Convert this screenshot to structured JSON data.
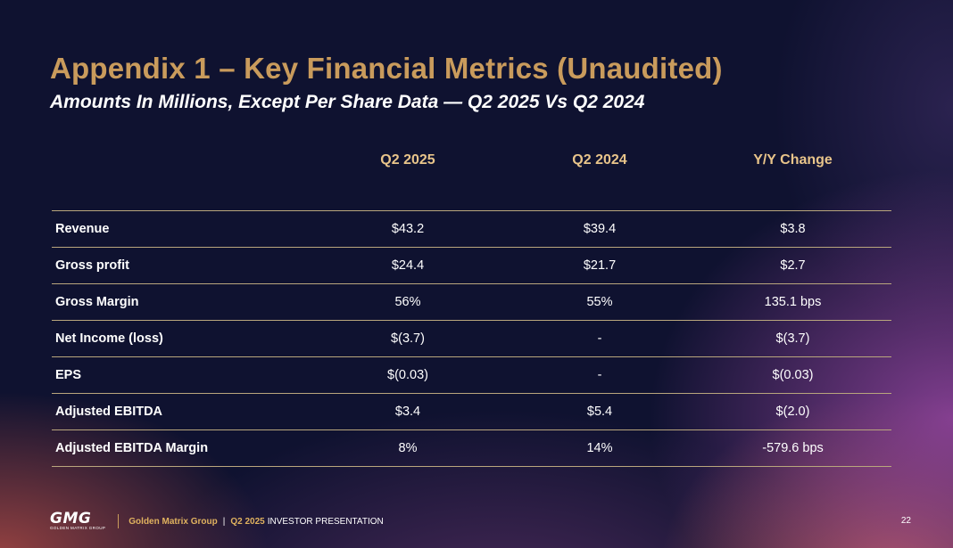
{
  "slide": {
    "title": "Appendix 1 – Key Financial Metrics (Unaudited)",
    "subtitle": "Amounts In Millions, Except Per Share Data — Q2 2025 Vs Q2 2024"
  },
  "table": {
    "headers": [
      "",
      "Q2 2025",
      "Q2 2024",
      "Y/Y Change"
    ],
    "rows": [
      {
        "metric": "Revenue",
        "q2_2025": "$43.2",
        "q2_2024": "$39.4",
        "yy_change": "$3.8"
      },
      {
        "metric": "Gross profit",
        "q2_2025": "$24.4",
        "q2_2024": "$21.7",
        "yy_change": "$2.7"
      },
      {
        "metric": "Gross Margin",
        "q2_2025": "56%",
        "q2_2024": "55%",
        "yy_change": "135.1 bps"
      },
      {
        "metric": "Net Income (loss)",
        "q2_2025": "$(3.7)",
        "q2_2024": "-",
        "yy_change": "$(3.7)"
      },
      {
        "metric": "EPS",
        "q2_2025": "$(0.03)",
        "q2_2024": "-",
        "yy_change": "$(0.03)"
      },
      {
        "metric": "Adjusted EBITDA",
        "q2_2025": "$3.4",
        "q2_2024": "$5.4",
        "yy_change": "$(2.0)"
      },
      {
        "metric": "Adjusted EBITDA Margin",
        "q2_2025": "8%",
        "q2_2024": "14%",
        "yy_change": "-579.6 bps"
      }
    ]
  },
  "footer": {
    "logo_text": "GMG",
    "logo_subtext": "GOLDEN MATRIX GROUP",
    "company": "Golden Matrix Group",
    "separator": "|",
    "quarter": "Q2 2025",
    "presentation": "INVESTOR PRESENTATION",
    "page_number": "22"
  },
  "colors": {
    "title_gold": "#c99b5c",
    "header_gold": "#e8c48a",
    "rule": "#b9a67d",
    "background": "#0f1230"
  }
}
